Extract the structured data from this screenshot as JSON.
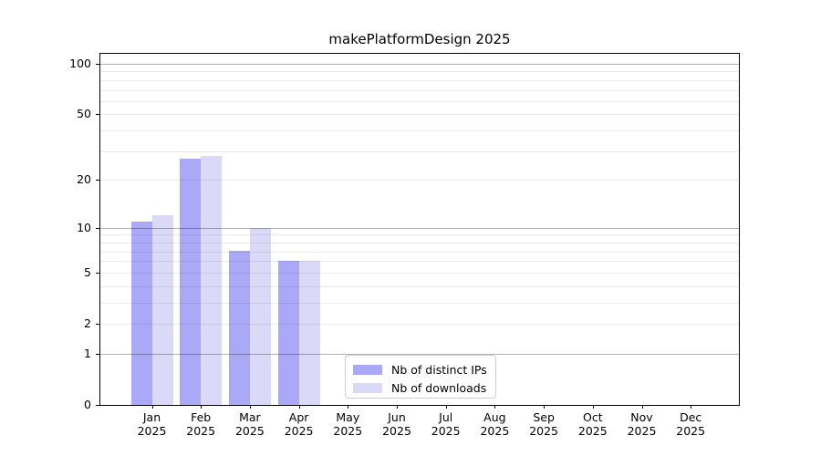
{
  "page": {
    "background": "#ffffff"
  },
  "chart_data": {
    "type": "bar",
    "title": "makePlatformDesign 2025",
    "scale": "log10(1+x)",
    "grid": true,
    "categories": [
      "Jan",
      "Feb",
      "Mar",
      "Apr",
      "May",
      "Jun",
      "Jul",
      "Aug",
      "Sep",
      "Oct",
      "Nov",
      "Dec"
    ],
    "year_label": "2025",
    "series": [
      {
        "name": "Nb of distinct IPs",
        "color": "#a9a9f7",
        "values": [
          11,
          27,
          7,
          6,
          0,
          0,
          0,
          0,
          0,
          0,
          0,
          0
        ]
      },
      {
        "name": "Nb of downloads",
        "color": "#dadaf8",
        "values": [
          12,
          28,
          10,
          6,
          0,
          0,
          0,
          0,
          0,
          0,
          0,
          0
        ]
      }
    ],
    "y_ticks": [
      100,
      50,
      20,
      10,
      5,
      2,
      1,
      0
    ],
    "major_gridlines": [
      1,
      10,
      100
    ],
    "minor_gridlines": [
      2,
      3,
      4,
      5,
      6,
      7,
      8,
      9,
      20,
      30,
      40,
      50,
      60,
      70,
      80,
      90
    ],
    "ylim": [
      0,
      114
    ],
    "xlabel": "",
    "ylabel": "",
    "legend_position": "lower center",
    "colors": {
      "major_grid": "#b2b2b2",
      "minor_grid": "#ebebeb",
      "axis": "#000000",
      "legend_border": "#cccccc"
    }
  }
}
